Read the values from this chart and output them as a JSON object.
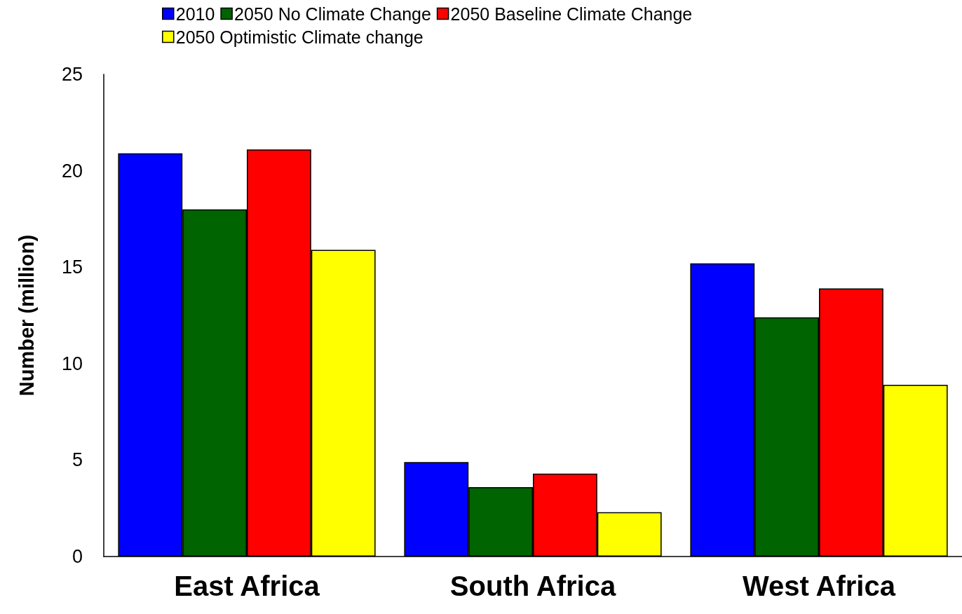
{
  "chart_data": {
    "type": "bar",
    "ylabel": "Number (million)",
    "categories": [
      "East Africa",
      "South Africa",
      "West Africa"
    ],
    "series": [
      {
        "name": "2010",
        "color": "#0000ff",
        "values": [
          20.9,
          4.9,
          15.2
        ]
      },
      {
        "name": "2050 No Climate Change",
        "color": "#006400",
        "values": [
          18.0,
          3.6,
          12.4
        ]
      },
      {
        "name": "2050 Baseline Climate Change",
        "color": "#ff0000",
        "values": [
          21.1,
          4.3,
          13.9
        ]
      },
      {
        "name": "2050 Optimistic Climate change",
        "color": "#ffff00",
        "values": [
          15.9,
          2.3,
          8.9
        ]
      }
    ],
    "ylim": [
      0,
      25
    ],
    "yticks": [
      0,
      5,
      10,
      15,
      20,
      25
    ],
    "grid": false,
    "legend": "top"
  }
}
